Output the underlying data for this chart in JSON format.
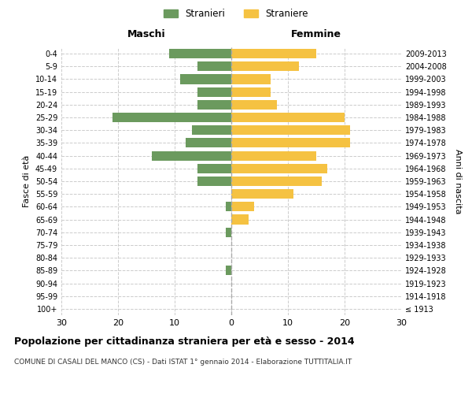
{
  "age_groups": [
    "100+",
    "95-99",
    "90-94",
    "85-89",
    "80-84",
    "75-79",
    "70-74",
    "65-69",
    "60-64",
    "55-59",
    "50-54",
    "45-49",
    "40-44",
    "35-39",
    "30-34",
    "25-29",
    "20-24",
    "15-19",
    "10-14",
    "5-9",
    "0-4"
  ],
  "birth_years": [
    "≤ 1913",
    "1914-1918",
    "1919-1923",
    "1924-1928",
    "1929-1933",
    "1934-1938",
    "1939-1943",
    "1944-1948",
    "1949-1953",
    "1954-1958",
    "1959-1963",
    "1964-1968",
    "1969-1973",
    "1974-1978",
    "1979-1983",
    "1984-1988",
    "1989-1993",
    "1994-1998",
    "1999-2003",
    "2004-2008",
    "2009-2013"
  ],
  "maschi": [
    0,
    0,
    0,
    1,
    0,
    0,
    1,
    0,
    1,
    0,
    6,
    6,
    14,
    8,
    7,
    21,
    6,
    6,
    9,
    6,
    11
  ],
  "femmine": [
    0,
    0,
    0,
    0,
    0,
    0,
    0,
    3,
    4,
    11,
    16,
    17,
    15,
    21,
    21,
    20,
    8,
    7,
    7,
    12,
    15
  ],
  "male_color": "#6b9a5e",
  "female_color": "#f5c242",
  "bg_color": "#ffffff",
  "grid_color": "#cccccc",
  "title": "Popolazione per cittadinanza straniera per età e sesso - 2014",
  "subtitle": "COMUNE DI CASALI DEL MANCO (CS) - Dati ISTAT 1° gennaio 2014 - Elaborazione TUTTITALIA.IT",
  "xlabel_left": "Maschi",
  "xlabel_right": "Femmine",
  "ylabel_left": "Fasce di età",
  "ylabel_right": "Anni di nascita",
  "legend_male": "Stranieri",
  "legend_female": "Straniere",
  "xlim": 30,
  "dashed_line_color": "#aaaaaa"
}
